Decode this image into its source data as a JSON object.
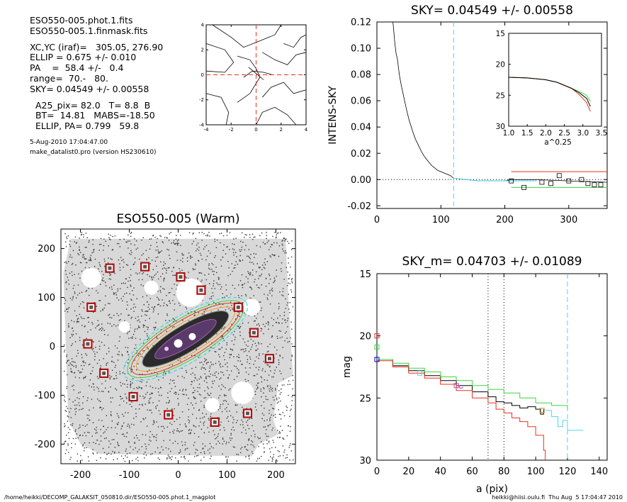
{
  "info": {
    "lines1": [
      "ESO550-005.phot.1.fits",
      "ESO550-005.1.finmask.fits"
    ],
    "lines2": [
      "XC,YC (iraf)=   305.05, 276.90",
      "ELLIP = 0.675 +/- 0.010",
      "PA    =  58.4 +/-   0.4",
      "range=  70.-   80.",
      "SKY= 0.04549 +/- 0.00558"
    ],
    "lines3": [
      "  A25_pix= 82.0   T= 8.8  B",
      "  BT=  14.81   MABS=-18.50",
      "  ELLIP, PA= 0.799   59.8"
    ],
    "date": "5-Aug-2010 17:04:47.00",
    "program": "make_datalist0.pro (version HS230610)"
  },
  "footer": {
    "left": "/home/heikki/DECOMP_GALAKSIT_050810.dir/ESO550-005.phot.1_magplot",
    "right": "heikki@hiisi.oulu.fi  Thu Aug  5 17:04:47 2010"
  },
  "colors": {
    "red": "#e8301e",
    "green": "#3ed43e",
    "cyan": "#4fd6f0",
    "magenta": "#b04ab0",
    "black": "#000000"
  },
  "chart_data": [
    {
      "id": "center_contour",
      "type": "contour",
      "title": "",
      "xlim": [
        -4,
        4
      ],
      "ylim": [
        -4,
        4
      ],
      "xticks": [
        "-4",
        "-2",
        "0",
        "2",
        "4"
      ],
      "yticks": [
        "-4",
        "-2",
        "0",
        "2",
        "4"
      ]
    },
    {
      "id": "sky_profile",
      "type": "line",
      "title": "SKY= 0.04549 +/- 0.00558",
      "ylabel": "INTENS-SKY",
      "xlim": [
        0,
        360
      ],
      "ylim": [
        -0.022,
        0.12
      ],
      "xticks": [
        "0",
        "100",
        "200",
        "300"
      ],
      "yticks": [
        "-0.02",
        "0.00",
        "0.02",
        "0.04",
        "0.06",
        "0.08",
        "0.10",
        "0.12"
      ],
      "cyan_line_x": 120,
      "profile": [
        [
          25,
          0.12
        ],
        [
          26,
          0.115
        ],
        [
          28,
          0.104
        ],
        [
          30,
          0.096
        ],
        [
          32,
          0.092
        ],
        [
          35,
          0.08
        ],
        [
          38,
          0.072
        ],
        [
          42,
          0.063
        ],
        [
          46,
          0.054
        ],
        [
          50,
          0.046
        ],
        [
          55,
          0.038
        ],
        [
          60,
          0.031
        ],
        [
          65,
          0.026
        ],
        [
          70,
          0.021
        ],
        [
          75,
          0.017
        ],
        [
          80,
          0.014
        ],
        [
          85,
          0.011
        ],
        [
          90,
          0.009
        ],
        [
          95,
          0.007
        ],
        [
          100,
          0.006
        ],
        [
          105,
          0.005
        ],
        [
          110,
          0.004
        ],
        [
          115,
          0.003
        ],
        [
          120,
          0.001
        ],
        [
          140,
          0.0
        ],
        [
          160,
          -0.001
        ],
        [
          180,
          -0.001
        ],
        [
          200,
          -0.001
        ],
        [
          210,
          0.0
        ],
        [
          250,
          0.0
        ],
        [
          300,
          -0.001
        ],
        [
          360,
          -0.002
        ]
      ],
      "red_level": 0.006,
      "green_level": -0.006,
      "squares": [
        [
          210,
          -0.001
        ],
        [
          230,
          -0.006
        ],
        [
          258,
          -0.002
        ],
        [
          272,
          -0.003
        ],
        [
          285,
          0.003
        ],
        [
          300,
          -0.001
        ],
        [
          320,
          0.0
        ],
        [
          330,
          -0.003
        ],
        [
          340,
          -0.004
        ],
        [
          350,
          -0.004
        ]
      ],
      "inset": {
        "xlabel": "a^0.25",
        "xlim": [
          1.0,
          3.5
        ],
        "ylim": [
          15,
          30
        ],
        "xticks": [
          "1.0",
          "1.5",
          "2.0",
          "2.5",
          "3.0",
          "3.5"
        ],
        "yticks": [
          "15",
          "20",
          "25",
          "30"
        ]
      }
    },
    {
      "id": "eso550_image",
      "type": "image",
      "title": "ESO550-005 (Warm)",
      "xlim": [
        -240,
        240
      ],
      "ylim": [
        -240,
        240
      ],
      "xticks": [
        "-200",
        "-100",
        "0",
        "100",
        "200"
      ],
      "yticks": [
        "-200",
        "-100",
        "0",
        "100",
        "200"
      ],
      "boxes": [
        [
          -140,
          160
        ],
        [
          -68,
          163
        ],
        [
          5,
          142
        ],
        [
          47,
          115
        ],
        [
          -178,
          80
        ],
        [
          123,
          80
        ],
        [
          155,
          28
        ],
        [
          -185,
          5
        ],
        [
          187,
          -25
        ],
        [
          -152,
          -55
        ],
        [
          -92,
          -103
        ],
        [
          -20,
          -140
        ],
        [
          142,
          -137
        ],
        [
          75,
          -155
        ]
      ]
    },
    {
      "id": "sky_m_profile",
      "type": "line",
      "title": "SKY_m=  0.04703 +/- 0.01089",
      "xlabel": "a (pix)",
      "ylabel": "mag",
      "xlim": [
        0,
        145
      ],
      "ylim": [
        15,
        30
      ],
      "xticks": [
        "0",
        "20",
        "40",
        "60",
        "80",
        "100",
        "120",
        "140"
      ],
      "yticks": [
        "15",
        "20",
        "25",
        "30"
      ],
      "dotted_lines_x": [
        70,
        80
      ],
      "cyan_line_x": 120,
      "series": [
        {
          "color": "black",
          "points": [
            [
              0,
              21.9
            ],
            [
              10,
              22.4
            ],
            [
              20,
              22.8
            ],
            [
              30,
              23.2
            ],
            [
              40,
              23.6
            ],
            [
              50,
              24.0
            ],
            [
              60,
              24.5
            ],
            [
              70,
              24.9
            ],
            [
              75,
              25.3
            ],
            [
              80,
              25.4
            ],
            [
              85,
              25.6
            ],
            [
              90,
              25.8
            ],
            [
              95,
              25.7
            ],
            [
              100,
              25.9
            ],
            [
              103,
              26.3
            ],
            [
              105,
              25.9
            ]
          ]
        },
        {
          "color": "green",
          "points": [
            [
              0,
              21.9
            ],
            [
              10,
              22.2
            ],
            [
              20,
              22.6
            ],
            [
              30,
              22.9
            ],
            [
              40,
              23.3
            ],
            [
              50,
              23.6
            ],
            [
              60,
              24.0
            ],
            [
              70,
              24.3
            ],
            [
              80,
              24.6
            ],
            [
              90,
              25.0
            ],
            [
              100,
              25.4
            ],
            [
              110,
              25.6
            ],
            [
              120,
              25.9
            ]
          ]
        },
        {
          "color": "red",
          "points": [
            [
              0,
              22.0
            ],
            [
              10,
              22.5
            ],
            [
              20,
              23.0
            ],
            [
              30,
              23.4
            ],
            [
              40,
              23.9
            ],
            [
              50,
              24.4
            ],
            [
              60,
              25.0
            ],
            [
              70,
              25.4
            ],
            [
              75,
              25.9
            ],
            [
              80,
              26.2
            ],
            [
              85,
              26.6
            ],
            [
              90,
              26.9
            ],
            [
              95,
              27.3
            ],
            [
              100,
              28.0
            ],
            [
              105,
              29.2
            ],
            [
              106,
              30.0
            ]
          ]
        },
        {
          "color": "cyan",
          "points": [
            [
              106,
              26.0
            ],
            [
              110,
              26.5
            ],
            [
              114,
              27.3
            ],
            [
              117,
              26.8
            ],
            [
              120,
              27.6
            ],
            [
              130,
              27.6
            ]
          ]
        },
        {
          "color": "magenta",
          "points": [
            [
              50,
              24.0
            ],
            [
              52,
              24.2
            ],
            [
              54,
              24.1
            ]
          ]
        }
      ]
    }
  ]
}
